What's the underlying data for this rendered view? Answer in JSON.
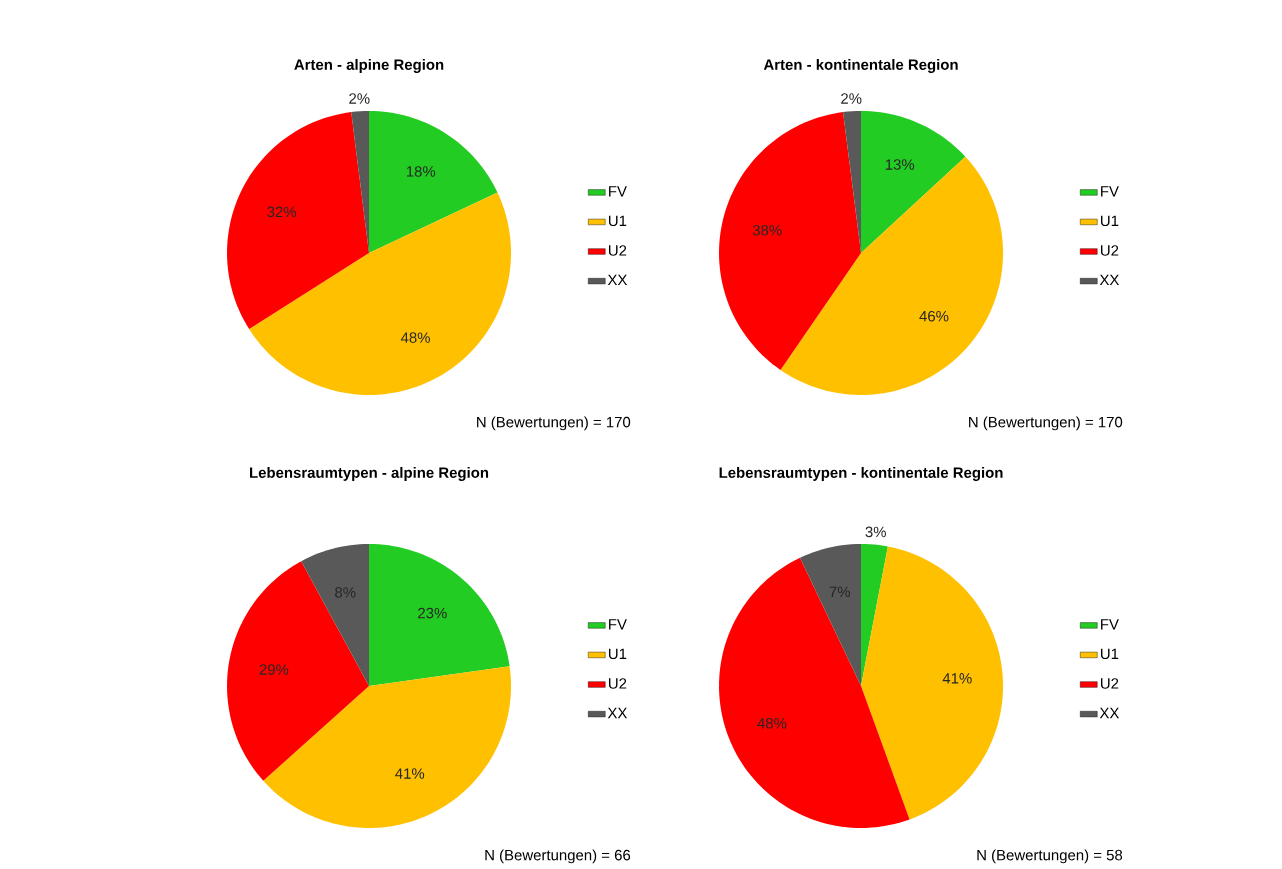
{
  "chart_data": [
    {
      "type": "pie",
      "title": "Arten - alpine Region",
      "categories": [
        "FV",
        "U1",
        "U2",
        "XX"
      ],
      "values": [
        18,
        48,
        32,
        2
      ],
      "colors": [
        "#22cc22",
        "#ffc000",
        "#ff0000",
        "#595959"
      ],
      "value_labels": [
        "18%",
        "48%",
        "32%",
        "2%"
      ],
      "legend": "right",
      "annotations": [
        "N (Bewertungen) = 170"
      ]
    },
    {
      "type": "pie",
      "title": "Arten - kontinentale Region",
      "categories": [
        "FV",
        "U1",
        "U2",
        "XX"
      ],
      "values": [
        13,
        46,
        38,
        2
      ],
      "colors": [
        "#22cc22",
        "#ffc000",
        "#ff0000",
        "#595959"
      ],
      "value_labels": [
        "13%",
        "46%",
        "38%",
        "2%"
      ],
      "legend": "right",
      "annotations": [
        "N (Bewertungen) = 170"
      ]
    },
    {
      "type": "pie",
      "title": "Lebensraumtypen - alpine Region",
      "categories": [
        "FV",
        "U1",
        "U2",
        "XX"
      ],
      "values": [
        23,
        41,
        29,
        8
      ],
      "colors": [
        "#22cc22",
        "#ffc000",
        "#ff0000",
        "#595959"
      ],
      "value_labels": [
        "23%",
        "41%",
        "29%",
        "8%"
      ],
      "legend": "right",
      "annotations": [
        "N (Bewertungen) = 66"
      ]
    },
    {
      "type": "pie",
      "title": "Lebensraumtypen - kontinentale Region",
      "categories": [
        "FV",
        "U1",
        "U2",
        "XX"
      ],
      "values": [
        3,
        41,
        48,
        7
      ],
      "colors": [
        "#22cc22",
        "#ffc000",
        "#ff0000",
        "#595959"
      ],
      "value_labels": [
        "3%",
        "41%",
        "48%",
        "7%"
      ],
      "legend": "right",
      "annotations": [
        "N (Bewertungen) = 58"
      ]
    }
  ]
}
